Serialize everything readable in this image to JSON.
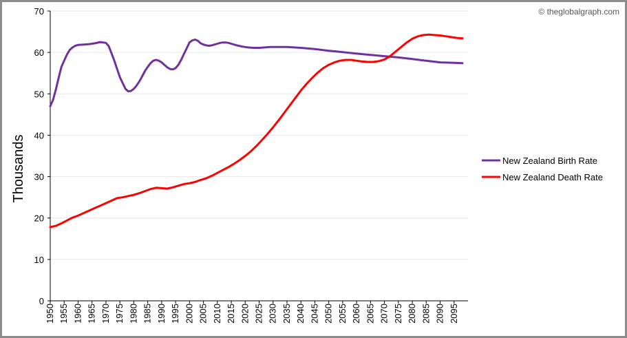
{
  "credit": "© theglobalgraph.com",
  "chart_data": {
    "type": "line",
    "title": "",
    "xlabel": "",
    "ylabel": "Thousands",
    "ylim": [
      0,
      70
    ],
    "yticks": [
      0,
      10,
      20,
      30,
      40,
      50,
      60,
      70
    ],
    "xlim": [
      1950,
      2100
    ],
    "xticks": [
      1950,
      1955,
      1960,
      1965,
      1970,
      1975,
      1980,
      1985,
      1990,
      1995,
      2000,
      2005,
      2010,
      2015,
      2020,
      2025,
      2030,
      2035,
      2040,
      2045,
      2050,
      2055,
      2060,
      2065,
      2070,
      2075,
      2080,
      2085,
      2090,
      2095
    ],
    "grid": true,
    "legend_position": "right",
    "series": [
      {
        "name": "New Zealand Birth Rate",
        "color": "#7030a0",
        "x": [
          1950,
          1951,
          1952,
          1953,
          1954,
          1955,
          1956,
          1957,
          1958,
          1959,
          1960,
          1962,
          1964,
          1966,
          1968,
          1970,
          1971,
          1972,
          1973,
          1974,
          1975,
          1976,
          1977,
          1978,
          1979,
          1980,
          1981,
          1982,
          1983,
          1984,
          1985,
          1986,
          1987,
          1988,
          1989,
          1990,
          1991,
          1992,
          1993,
          1994,
          1995,
          1996,
          1997,
          1998,
          1999,
          2000,
          2001,
          2002,
          2003,
          2004,
          2005,
          2006,
          2007,
          2008,
          2009,
          2010,
          2011,
          2012,
          2013,
          2014,
          2015,
          2017,
          2019,
          2021,
          2023,
          2025,
          2027,
          2029,
          2031,
          2033,
          2035,
          2040,
          2045,
          2050,
          2053,
          2056,
          2060,
          2065,
          2070,
          2075,
          2080,
          2085,
          2090,
          2095,
          2098
        ],
        "values": [
          47.0,
          48.5,
          51.0,
          53.8,
          56.5,
          58.0,
          59.5,
          60.6,
          61.2,
          61.6,
          61.8,
          61.9,
          62.0,
          62.2,
          62.5,
          62.3,
          61.5,
          59.8,
          58.0,
          56.0,
          54.0,
          52.6,
          51.2,
          50.6,
          50.7,
          51.2,
          52.0,
          53.0,
          54.2,
          55.5,
          56.5,
          57.4,
          58.0,
          58.2,
          58.0,
          57.6,
          57.0,
          56.4,
          56.0,
          55.9,
          56.2,
          57.0,
          58.2,
          59.6,
          61.0,
          62.4,
          62.9,
          63.1,
          62.8,
          62.2,
          61.9,
          61.7,
          61.6,
          61.7,
          61.9,
          62.1,
          62.3,
          62.4,
          62.4,
          62.3,
          62.1,
          61.7,
          61.4,
          61.2,
          61.1,
          61.1,
          61.2,
          61.3,
          61.3,
          61.3,
          61.3,
          61.1,
          60.8,
          60.4,
          60.2,
          60.0,
          59.7,
          59.4,
          59.1,
          58.8,
          58.4,
          58.0,
          57.6,
          57.5,
          57.4
        ]
      },
      {
        "name": "New Zealand Death Rate",
        "color": "#ff0000",
        "x": [
          1950,
          1952,
          1954,
          1956,
          1958,
          1960,
          1962,
          1964,
          1966,
          1968,
          1970,
          1972,
          1974,
          1976,
          1978,
          1980,
          1982,
          1984,
          1986,
          1988,
          1990,
          1992,
          1994,
          1996,
          1998,
          2000,
          2002,
          2004,
          2006,
          2008,
          2010,
          2012,
          2014,
          2016,
          2018,
          2020,
          2022,
          2024,
          2026,
          2028,
          2030,
          2032,
          2034,
          2036,
          2038,
          2040,
          2042,
          2044,
          2046,
          2048,
          2050,
          2052,
          2054,
          2056,
          2058,
          2060,
          2062,
          2064,
          2066,
          2068,
          2070,
          2072,
          2074,
          2076,
          2078,
          2080,
          2082,
          2084,
          2086,
          2088,
          2090,
          2092,
          2094,
          2096,
          2098
        ],
        "values": [
          17.8,
          18.1,
          18.7,
          19.4,
          20.1,
          20.6,
          21.2,
          21.8,
          22.4,
          23.0,
          23.6,
          24.2,
          24.8,
          25.0,
          25.3,
          25.6,
          26.0,
          26.5,
          27.0,
          27.3,
          27.2,
          27.1,
          27.4,
          27.8,
          28.2,
          28.4,
          28.7,
          29.2,
          29.6,
          30.2,
          30.9,
          31.6,
          32.3,
          33.1,
          34.0,
          35.0,
          36.1,
          37.4,
          38.8,
          40.3,
          41.9,
          43.6,
          45.4,
          47.2,
          49.0,
          50.8,
          52.4,
          53.8,
          55.1,
          56.2,
          57.0,
          57.6,
          58.0,
          58.2,
          58.2,
          58.0,
          57.8,
          57.7,
          57.7,
          57.9,
          58.3,
          59.1,
          60.2,
          61.3,
          62.4,
          63.3,
          63.9,
          64.2,
          64.3,
          64.2,
          64.1,
          63.9,
          63.7,
          63.5,
          63.4
        ]
      }
    ]
  }
}
